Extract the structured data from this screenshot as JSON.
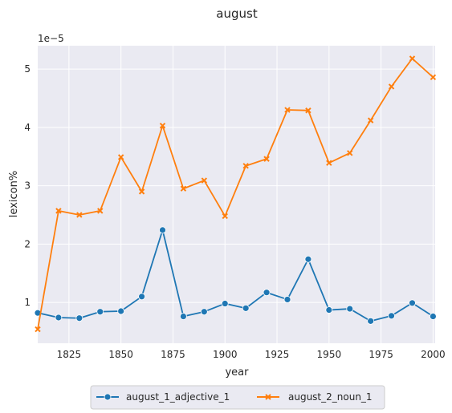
{
  "chart_data": {
    "type": "line",
    "title": "august",
    "xlabel": "year",
    "ylabel": "lexicon%",
    "y_scale_label": "1e−5",
    "xlim": [
      1810,
      2001
    ],
    "ylim": [
      0.3,
      5.4
    ],
    "x_ticks": [
      1825,
      1850,
      1875,
      1900,
      1925,
      1950,
      1975,
      2000
    ],
    "y_ticks": [
      1,
      2,
      3,
      4,
      5
    ],
    "grid": true,
    "legend_position": "bottom-center",
    "x": [
      1810,
      1820,
      1830,
      1840,
      1850,
      1860,
      1870,
      1880,
      1890,
      1900,
      1910,
      1920,
      1930,
      1940,
      1950,
      1960,
      1970,
      1980,
      1990,
      2000
    ],
    "series": [
      {
        "name": "august_1_adjective_1",
        "color": "#1f77b4",
        "marker": "circle",
        "values": [
          0.82,
          0.74,
          0.73,
          0.84,
          0.85,
          1.1,
          2.24,
          0.76,
          0.84,
          0.98,
          0.9,
          1.17,
          1.05,
          1.74,
          0.87,
          0.89,
          0.68,
          0.77,
          0.99,
          0.76
        ]
      },
      {
        "name": "august_2_noun_1",
        "color": "#ff7f0e",
        "marker": "x",
        "values": [
          0.54,
          2.57,
          2.5,
          2.57,
          3.49,
          2.9,
          4.03,
          2.95,
          3.09,
          2.48,
          3.34,
          3.46,
          4.3,
          4.29,
          3.39,
          3.56,
          4.12,
          4.7,
          5.18,
          4.86
        ]
      }
    ]
  }
}
